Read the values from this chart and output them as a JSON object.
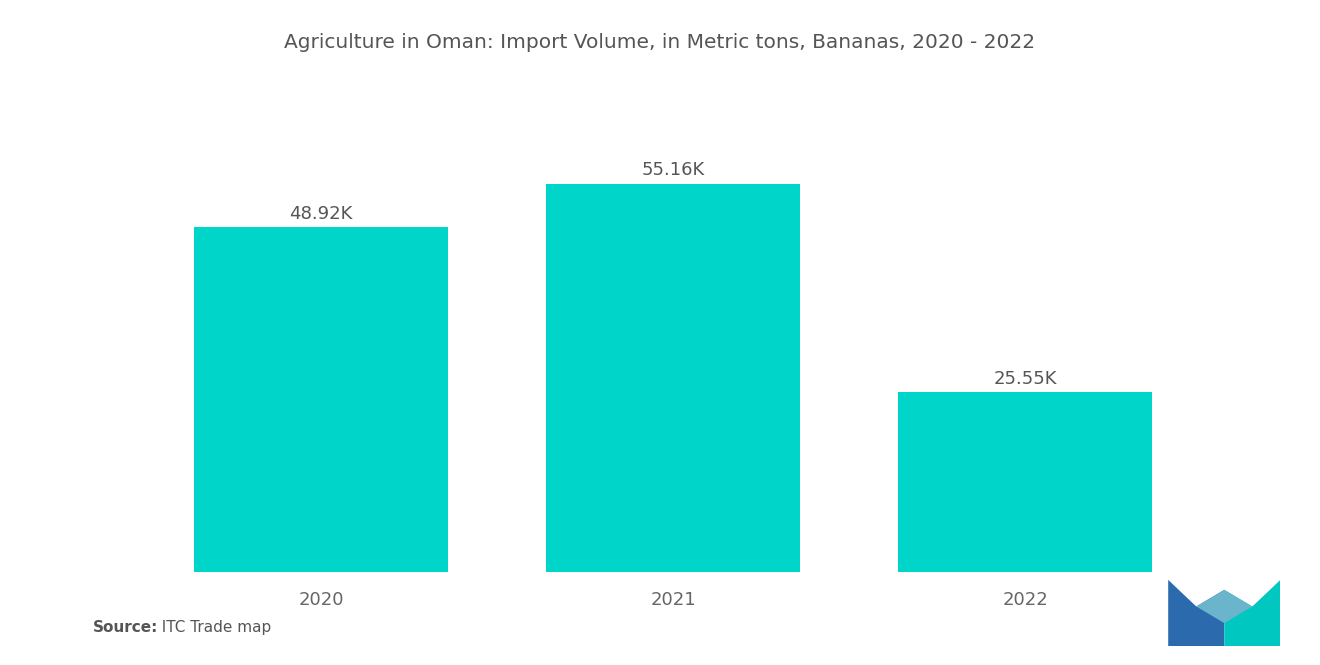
{
  "title": "Agriculture in Oman: Import Volume, in Metric tons, Bananas, 2020 - 2022",
  "categories": [
    "2020",
    "2021",
    "2022"
  ],
  "values": [
    48920,
    55160,
    25550
  ],
  "labels": [
    "48.92K",
    "55.16K",
    "25.55K"
  ],
  "bar_color": "#00D5CA",
  "background_color": "#ffffff",
  "title_fontsize": 14.5,
  "label_fontsize": 13,
  "tick_fontsize": 13,
  "source_bold": "Source:",
  "source_rest": "  ITC Trade map",
  "ylim": [
    0,
    68000
  ],
  "bar_width": 0.72,
  "logo_blue": "#2B6BAD",
  "logo_teal": "#00C8C0",
  "logo_light": "#6AB4CC"
}
